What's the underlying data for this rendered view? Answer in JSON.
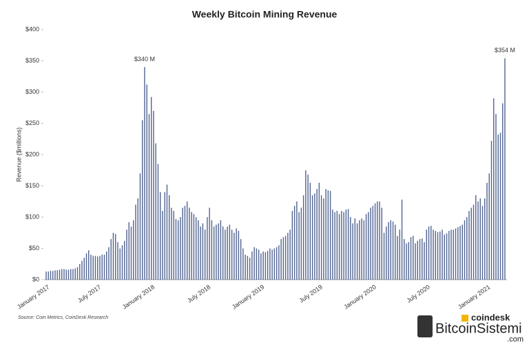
{
  "chart_data": {
    "type": "bar",
    "title": "Weekly Bitcoin Mining Revenue",
    "ylabel": "Revenue ($millions)",
    "source": "Source: Coin Metrics, CoinDesk Research",
    "watermark": [
      "coindesk",
      "BitcoinSistemi",
      ".com"
    ],
    "color": "#4f6290",
    "ylim": [
      0,
      400
    ],
    "yticks": [
      {
        "value": 0,
        "label": "$0"
      },
      {
        "value": 50,
        "label": "$50"
      },
      {
        "value": 100,
        "label": "$100"
      },
      {
        "value": 150,
        "label": "$150"
      },
      {
        "value": 200,
        "label": "$200"
      },
      {
        "value": 250,
        "label": "$250"
      },
      {
        "value": 300,
        "label": "$300"
      },
      {
        "value": 350,
        "label": "$350"
      },
      {
        "value": 400,
        "label": "$400"
      }
    ],
    "categories": [
      "January 2017",
      null,
      null,
      null,
      null,
      null,
      null,
      null,
      null,
      null,
      null,
      null,
      null,
      null,
      null,
      null,
      null,
      null,
      null,
      null,
      null,
      null,
      null,
      "July 2017",
      null,
      null,
      null,
      null,
      null,
      null,
      null,
      null,
      null,
      null,
      null,
      null,
      null,
      null,
      null,
      null,
      null,
      null,
      null,
      null,
      null,
      null,
      null,
      "January 2018",
      null,
      null,
      null,
      null,
      null,
      null,
      null,
      null,
      null,
      null,
      null,
      null,
      null,
      null,
      null,
      null,
      null,
      null,
      null,
      null,
      null,
      null,
      null,
      null,
      "July 2018",
      null,
      null,
      null,
      null,
      null,
      null,
      null,
      null,
      null,
      null,
      null,
      null,
      null,
      null,
      null,
      null,
      null,
      null,
      null,
      null,
      null,
      null,
      null,
      "January 2019",
      null,
      null,
      null,
      null,
      null,
      null,
      null,
      null,
      null,
      null,
      null,
      null,
      null,
      null,
      null,
      null,
      null,
      null,
      null,
      null,
      null,
      null,
      null,
      null,
      null,
      "July 2019",
      null,
      null,
      null,
      null,
      null,
      null,
      null,
      null,
      null,
      null,
      null,
      null,
      null,
      null,
      null,
      null,
      null,
      null,
      null,
      null,
      null,
      null,
      null,
      "January 2020",
      null,
      null,
      null,
      null,
      null,
      null,
      null,
      null,
      null,
      null,
      null,
      null,
      null,
      null,
      null,
      null,
      null,
      null,
      null,
      null,
      null,
      null,
      null,
      "July 2020",
      null,
      null,
      null,
      null,
      null,
      null,
      null,
      null,
      null,
      null,
      null,
      null,
      null,
      null,
      null,
      null,
      null,
      null,
      null,
      null,
      null,
      null,
      null,
      null,
      null,
      null,
      "January 2021",
      null,
      null,
      null,
      null,
      null,
      null,
      null,
      null
    ],
    "values": [
      13,
      13,
      14,
      14,
      15,
      15,
      16,
      17,
      17,
      16,
      16,
      17,
      17,
      18,
      20,
      25,
      30,
      35,
      42,
      47,
      40,
      38,
      38,
      37,
      38,
      40,
      40,
      45,
      52,
      65,
      75,
      73,
      60,
      50,
      55,
      62,
      80,
      92,
      85,
      95,
      120,
      130,
      170,
      255,
      340,
      312,
      265,
      292,
      270,
      218,
      185,
      140,
      110,
      140,
      152,
      135,
      115,
      110,
      97,
      95,
      100,
      115,
      118,
      125,
      115,
      108,
      105,
      100,
      95,
      85,
      90,
      80,
      100,
      115,
      95,
      85,
      88,
      90,
      95,
      85,
      80,
      85,
      88,
      80,
      75,
      82,
      78,
      65,
      50,
      40,
      38,
      35,
      45,
      52,
      50,
      48,
      42,
      45,
      44,
      46,
      50,
      48,
      50,
      52,
      55,
      65,
      68,
      70,
      75,
      80,
      110,
      118,
      125,
      108,
      115,
      135,
      175,
      168,
      155,
      135,
      138,
      145,
      155,
      135,
      130,
      145,
      143,
      142,
      112,
      108,
      110,
      105,
      110,
      108,
      112,
      113,
      100,
      90,
      98,
      90,
      95,
      98,
      95,
      105,
      108,
      115,
      118,
      122,
      125,
      125,
      115,
      75,
      85,
      92,
      95,
      93,
      88,
      70,
      80,
      128,
      65,
      58,
      60,
      68,
      70,
      58,
      62,
      65,
      66,
      60,
      80,
      85,
      86,
      80,
      78,
      76,
      77,
      80,
      72,
      74,
      78,
      80,
      80,
      82,
      84,
      86,
      88,
      95,
      100,
      110,
      115,
      120,
      135,
      125,
      130,
      118,
      130,
      155,
      170,
      222,
      290,
      265,
      232,
      235,
      282,
      354
    ],
    "value_labels": [
      null,
      null,
      null,
      null,
      null,
      null,
      null,
      null,
      null,
      null,
      null,
      null,
      null,
      null,
      null,
      null,
      null,
      null,
      null,
      null,
      null,
      null,
      null,
      null,
      null,
      null,
      null,
      null,
      null,
      null,
      null,
      null,
      null,
      null,
      null,
      null,
      null,
      null,
      null,
      null,
      null,
      null,
      null,
      null,
      "$340 M",
      null,
      null,
      null,
      null,
      null,
      null,
      null,
      null,
      null,
      null,
      null,
      null,
      null,
      null,
      null,
      null,
      null,
      null,
      null,
      null,
      null,
      null,
      null,
      null,
      null,
      null,
      null,
      null,
      null,
      null,
      null,
      null,
      null,
      null,
      null,
      null,
      null,
      null,
      null,
      null,
      null,
      null,
      null,
      null,
      null,
      null,
      null,
      null,
      null,
      null,
      null,
      null,
      null,
      null,
      null,
      null,
      null,
      null,
      null,
      null,
      null,
      null,
      null,
      null,
      null,
      null,
      null,
      null,
      null,
      null,
      null,
      null,
      null,
      null,
      null,
      null,
      null,
      null,
      null,
      null,
      null,
      null,
      null,
      null,
      null,
      null,
      null,
      null,
      null,
      null,
      null,
      null,
      null,
      null,
      null,
      null,
      null,
      null,
      null,
      null,
      null,
      null,
      null,
      null,
      null,
      null,
      null,
      null,
      null,
      null,
      null,
      null,
      null,
      null,
      null,
      null,
      null,
      null,
      null,
      null,
      null,
      null,
      null,
      null,
      null,
      null,
      null,
      null,
      null,
      null,
      null,
      null,
      null,
      null,
      null,
      null,
      null,
      null,
      null,
      null,
      null,
      null,
      null,
      null,
      null,
      null,
      null,
      null,
      null,
      null,
      null,
      null,
      null,
      null,
      null,
      null,
      null,
      null,
      null,
      null,
      "$354 M"
    ]
  }
}
